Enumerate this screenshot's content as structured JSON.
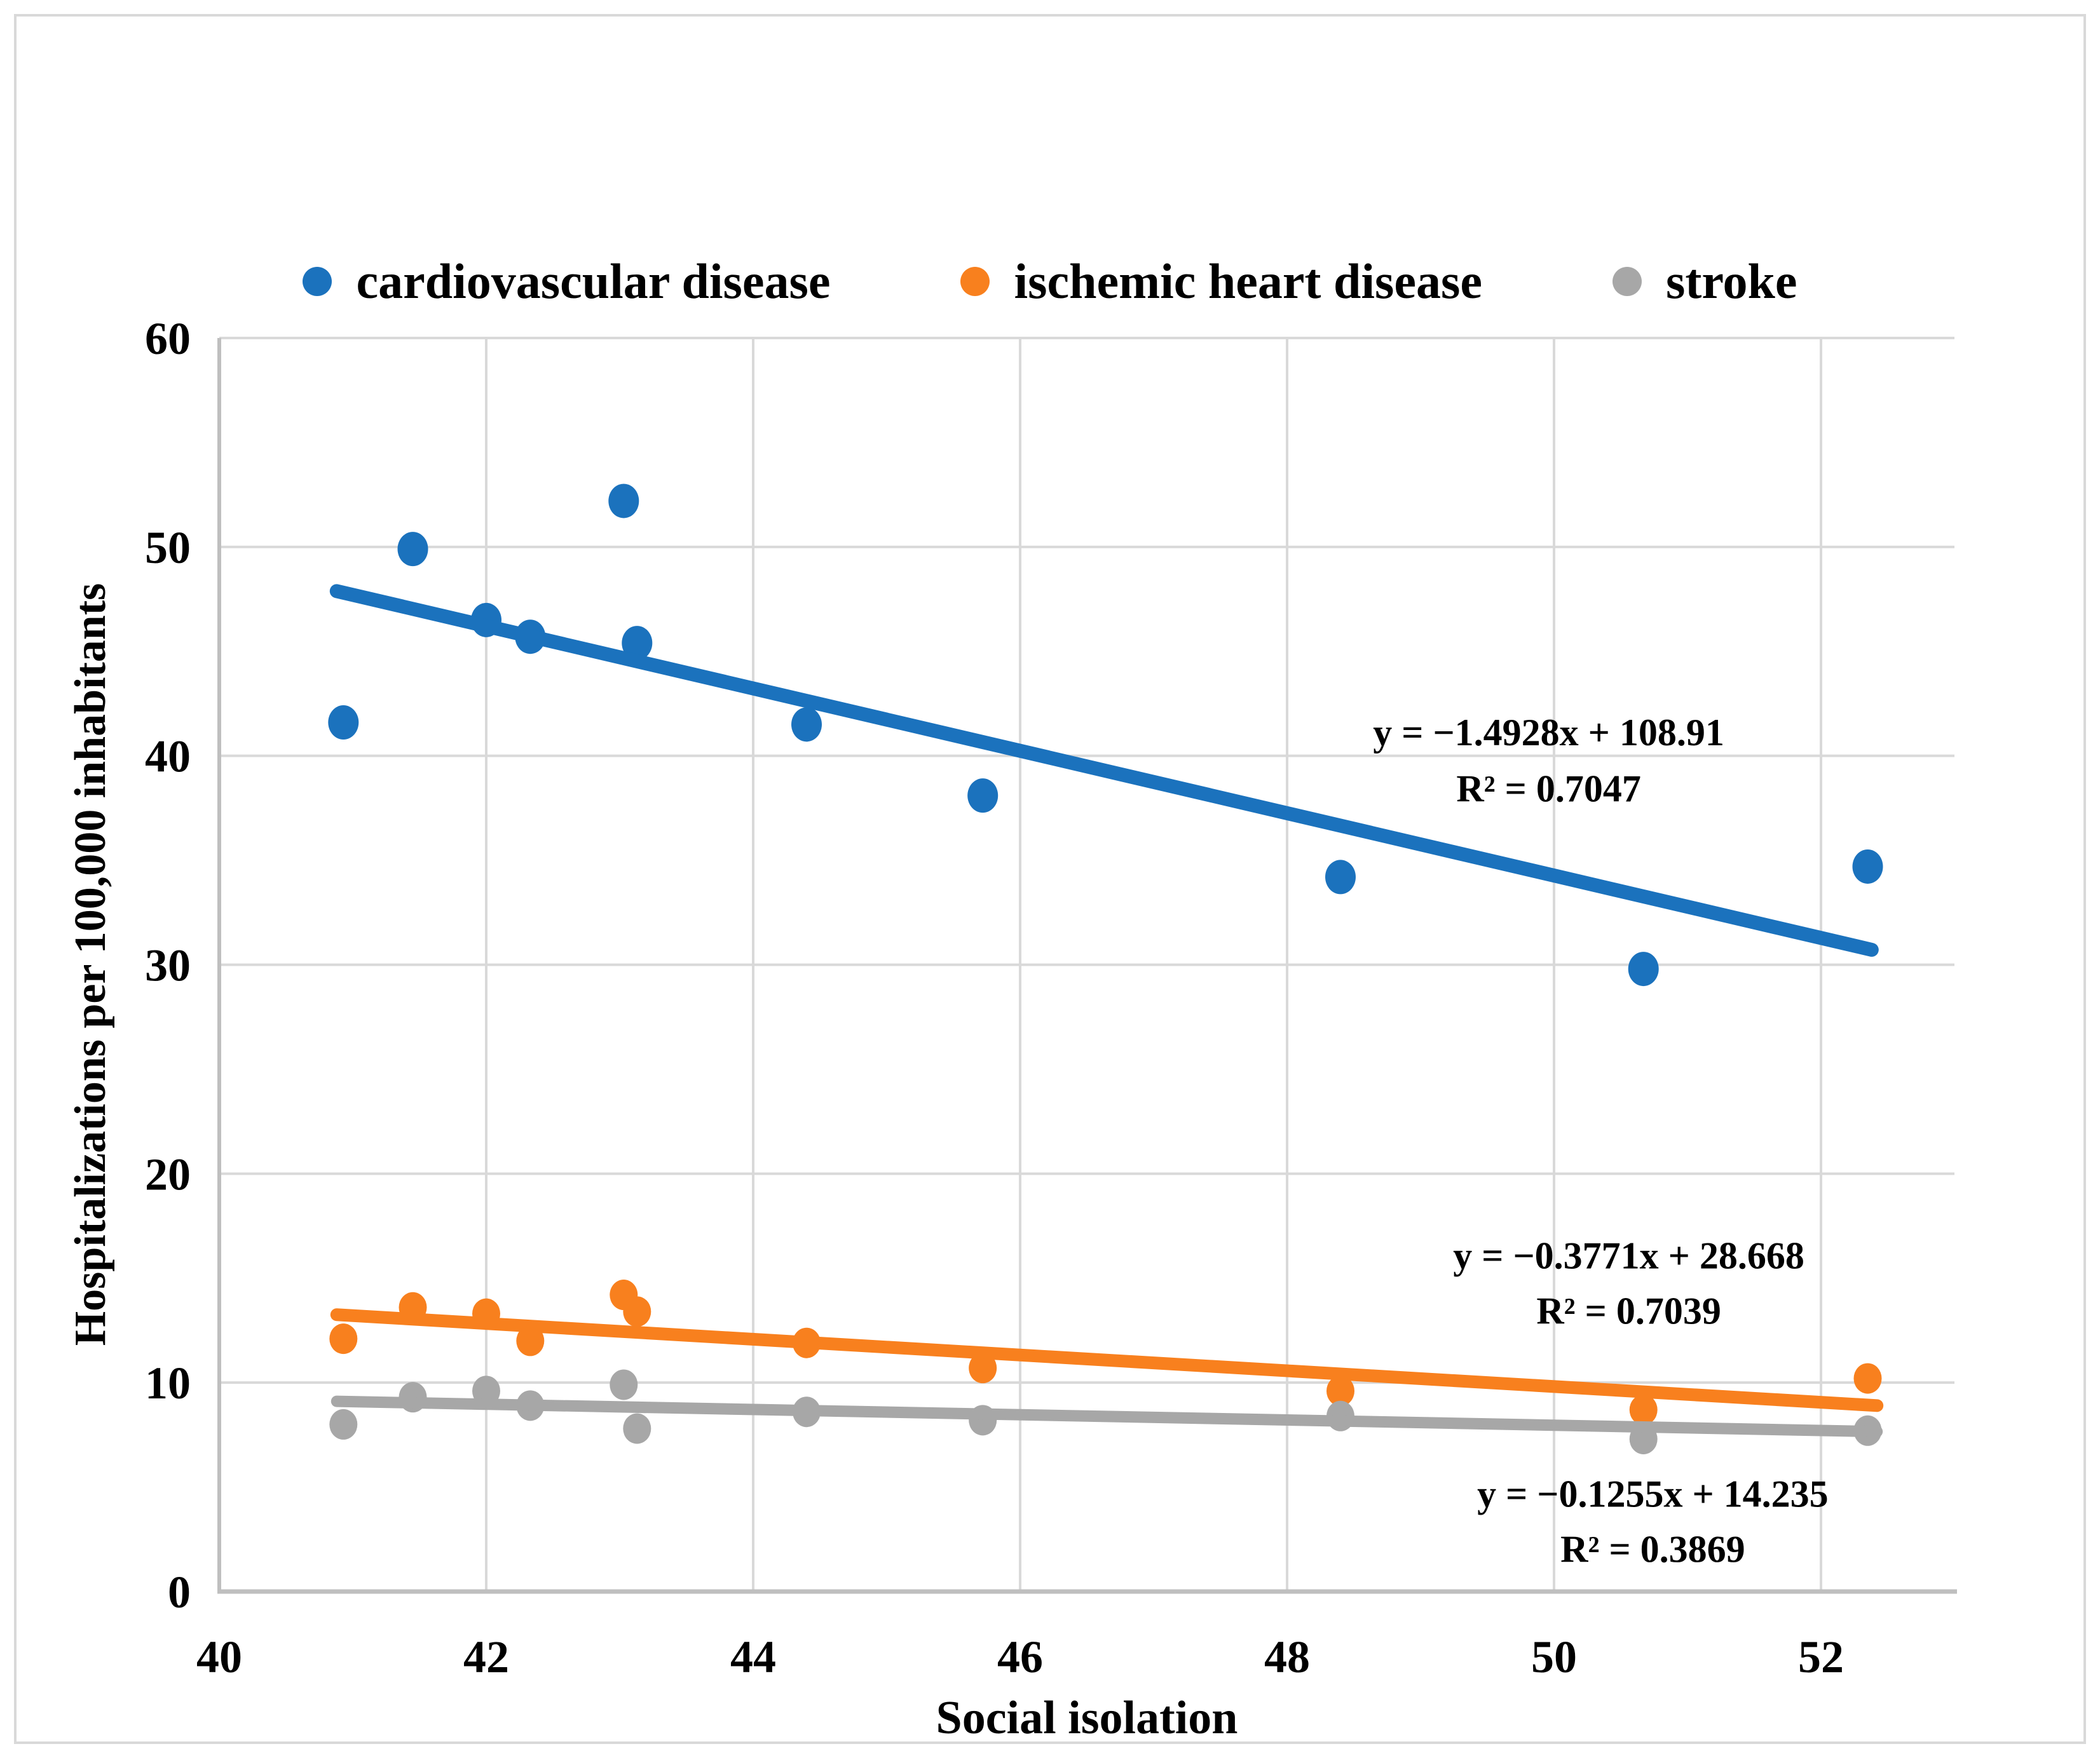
{
  "figure": {
    "xlabel": "Social isolation",
    "ylabel": "Hospitalizations per 100,000 inhabitants"
  },
  "colors": {
    "background": "#FFFFFF",
    "gridline": "#D9D9D9",
    "axis_line": "#BFBFBF",
    "frame": "#D9D9D9",
    "text": "#000000"
  },
  "chart_data": {
    "type": "scatter",
    "title": "",
    "xlabel": "Social isolation",
    "ylabel": "Hospitalizations per 100,000 inhabitants",
    "xlim": [
      40,
      53
    ],
    "ylim": [
      0,
      60
    ],
    "x_ticks": [
      40,
      42,
      44,
      46,
      48,
      50,
      52
    ],
    "y_ticks": [
      0,
      10,
      20,
      30,
      40,
      50,
      60
    ],
    "grid": true,
    "legend_position": "top",
    "series": [
      {
        "name": "cardiovascular disease",
        "color": "#1B72BD",
        "points": [
          [
            40.93,
            41.6
          ],
          [
            41.45,
            49.9
          ],
          [
            42.0,
            46.5
          ],
          [
            42.33,
            45.7
          ],
          [
            43.03,
            52.2
          ],
          [
            43.13,
            45.4
          ],
          [
            44.4,
            41.5
          ],
          [
            45.72,
            38.1
          ],
          [
            48.4,
            34.2
          ],
          [
            50.67,
            29.8
          ],
          [
            52.35,
            34.7
          ]
        ],
        "trendline": {
          "slope": -1.4928,
          "intercept": 108.91,
          "x_start": 40.88,
          "x_end": 52.38
        },
        "equation": "y = −1.4928x + 108.91",
        "r_squared": "R² = 0.7047",
        "equation_pos": [
          49.96,
          41.15
        ],
        "r2_pos": [
          49.96,
          38.45
        ]
      },
      {
        "name": "ischemic heart disease",
        "color": "#F8801E",
        "points": [
          [
            40.93,
            12.1
          ],
          [
            41.45,
            13.6
          ],
          [
            42.0,
            13.3
          ],
          [
            42.33,
            12.0
          ],
          [
            43.03,
            14.2
          ],
          [
            43.13,
            13.4
          ],
          [
            44.4,
            11.9
          ],
          [
            45.72,
            10.7
          ],
          [
            48.4,
            9.6
          ],
          [
            50.67,
            8.7
          ],
          [
            52.35,
            10.2
          ]
        ],
        "trendline": {
          "slope": -0.3771,
          "intercept": 28.668,
          "x_start": 40.88,
          "x_end": 52.42
        },
        "equation": "y = −0.3771x + 28.668",
        "r_squared": "R² = 0.7039",
        "equation_pos": [
          50.56,
          16.1
        ],
        "r2_pos": [
          50.56,
          13.45
        ]
      },
      {
        "name": "stroke",
        "color": "#A7A7A7",
        "points": [
          [
            40.93,
            8.0
          ],
          [
            41.45,
            9.3
          ],
          [
            42.0,
            9.6
          ],
          [
            42.33,
            8.9
          ],
          [
            43.03,
            9.9
          ],
          [
            43.13,
            7.8
          ],
          [
            44.4,
            8.6
          ],
          [
            45.72,
            8.2
          ],
          [
            48.4,
            8.4
          ],
          [
            50.67,
            7.3
          ],
          [
            52.35,
            7.7
          ]
        ],
        "trendline": {
          "slope": -0.1255,
          "intercept": 14.235,
          "x_start": 40.88,
          "x_end": 52.42
        },
        "equation": "y = −0.1255x + 14.235",
        "r_squared": "R² = 0.3869",
        "equation_pos": [
          50.74,
          4.7
        ],
        "r2_pos": [
          50.74,
          2.05
        ]
      }
    ]
  }
}
